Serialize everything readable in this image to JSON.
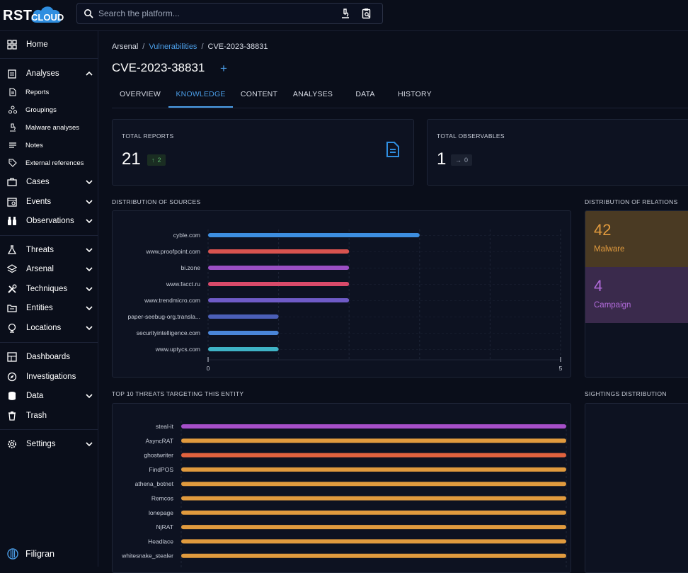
{
  "brand": {
    "logo_text": "RST",
    "cloud_text": "CLOUD"
  },
  "search": {
    "placeholder": "Search the platform..."
  },
  "sidebar": {
    "items": [
      {
        "label": "Home",
        "icon": "dashboard-icon"
      },
      {
        "label": "Analyses",
        "icon": "clipboard-icon",
        "expanded": true
      },
      {
        "label": "Reports",
        "icon": "document-icon",
        "sub": true
      },
      {
        "label": "Groupings",
        "icon": "groupings-icon",
        "sub": true
      },
      {
        "label": "Malware analyses",
        "icon": "microscope-icon",
        "sub": true
      },
      {
        "label": "Notes",
        "icon": "notes-icon",
        "sub": true
      },
      {
        "label": "External references",
        "icon": "tag-icon",
        "sub": true
      },
      {
        "label": "Cases",
        "icon": "briefcase-icon"
      },
      {
        "label": "Events",
        "icon": "events-icon"
      },
      {
        "label": "Observations",
        "icon": "binoculars-icon"
      },
      {
        "label": "Threats",
        "icon": "flask-icon"
      },
      {
        "label": "Arsenal",
        "icon": "layers-icon"
      },
      {
        "label": "Techniques",
        "icon": "tools-icon"
      },
      {
        "label": "Entities",
        "icon": "folder-icon"
      },
      {
        "label": "Locations",
        "icon": "globe-icon"
      },
      {
        "label": "Dashboards",
        "icon": "grid-icon"
      },
      {
        "label": "Investigations",
        "icon": "compass-icon"
      },
      {
        "label": "Data",
        "icon": "database-icon"
      },
      {
        "label": "Trash",
        "icon": "trash-icon"
      },
      {
        "label": "Settings",
        "icon": "gear-icon"
      }
    ],
    "footer": "Filigran"
  },
  "breadcrumb": {
    "root": "Arsenal",
    "link": "Vulnerabilities",
    "current": "CVE-2023-38831",
    "sep": "/"
  },
  "page": {
    "title": "CVE-2023-38831",
    "add": "+"
  },
  "tabs": [
    {
      "label": "OVERVIEW"
    },
    {
      "label": "KNOWLEDGE",
      "active": true
    },
    {
      "label": "CONTENT"
    },
    {
      "label": "ANALYSES"
    },
    {
      "label": "DATA"
    },
    {
      "label": "HISTORY"
    }
  ],
  "stats": {
    "reports": {
      "label": "TOTAL REPORTS",
      "value": "21",
      "delta": "2"
    },
    "observables": {
      "label": "TOTAL OBSERVABLES",
      "value": "1",
      "delta": "0"
    }
  },
  "sections": {
    "sources": "DISTRIBUTION OF SOURCES",
    "relations": "DISTRIBUTION OF RELATIONS",
    "threats": "TOP 10 THREATS TARGETING THIS ENTITY",
    "sightings": "SIGHTINGS DISTRIBUTION"
  },
  "relations": [
    {
      "value": "42",
      "name": "Malware",
      "color": "#e09a3e",
      "bg": "#4a3a23"
    },
    {
      "value": "4",
      "name": "Campaign",
      "color": "#b06ad9",
      "bg": "#3a2a4c"
    }
  ],
  "chart_data": [
    {
      "type": "bar",
      "orientation": "horizontal",
      "categories": [
        "cyble.com",
        "www.proofpoint.com",
        "bi.zone",
        "www.facct.ru",
        "www.trendmicro.com",
        "paper-seebug-org.transla...",
        "securityintelligence.com",
        "www.uptycs.com"
      ],
      "values": [
        3,
        2,
        2,
        2,
        2,
        1,
        1,
        1
      ],
      "colors": [
        "#3d8ee0",
        "#d9534f",
        "#9b4fc4",
        "#d94a6a",
        "#6f5bc7",
        "#4b5fb8",
        "#4a86d9",
        "#3fb3c6"
      ],
      "xlim": [
        0,
        5
      ],
      "ticks": [
        "0",
        "5"
      ]
    },
    {
      "type": "bar",
      "orientation": "horizontal",
      "categories": [
        "steal-it",
        "AsyncRAT",
        "ghostwriter",
        "FindPOS",
        "athena_botnet",
        "Remcos",
        "lonepage",
        "NjRAT",
        "Headlace",
        "whitesnake_stealer"
      ],
      "values": [
        1,
        1,
        1,
        1,
        1,
        1,
        1,
        1,
        1,
        1
      ],
      "colors": [
        "#a64fc9",
        "#e09a3e",
        "#e0623e",
        "#e09a3e",
        "#e09a3e",
        "#e09a3e",
        "#e09a3e",
        "#e09a3e",
        "#e09a3e",
        "#e09a3e"
      ],
      "xlim": [
        0,
        1
      ]
    }
  ]
}
